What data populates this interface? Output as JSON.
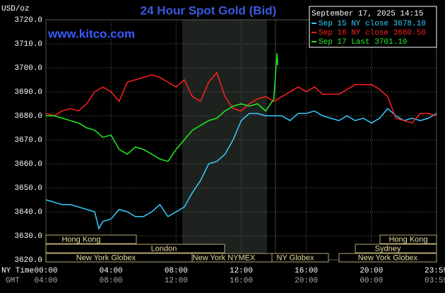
{
  "chart_data": {
    "type": "line",
    "title": "24 Hour Spot Gold (Bid)",
    "watermark": "www.kitco.com",
    "y_unit": "USD/oz",
    "timestamp": "September 17, 2025 14:15",
    "x_row_label": "NY Time",
    "x2_row_label": "GMT",
    "xlim": [
      0,
      24
    ],
    "xticks": [
      {
        "value": 0,
        "label": "00:00"
      },
      {
        "value": 4,
        "label": "04:00"
      },
      {
        "value": 8,
        "label": "08:00"
      },
      {
        "value": 12,
        "label": "12:00"
      },
      {
        "value": 16,
        "label": "16:00"
      },
      {
        "value": 20,
        "label": "20:00"
      },
      {
        "value": 23.98,
        "label": "23:59"
      }
    ],
    "x2ticks": [
      {
        "value": 0,
        "label": "04:00"
      },
      {
        "value": 4,
        "label": "08:00"
      },
      {
        "value": 8,
        "label": "12:00"
      },
      {
        "value": 12,
        "label": "16:00"
      },
      {
        "value": 16,
        "label": "20:00"
      },
      {
        "value": 20,
        "label": "00:00"
      },
      {
        "value": 23.98,
        "label": "03:59"
      }
    ],
    "ylim": [
      3620,
      3720
    ],
    "yticks": [
      {
        "value": 3620,
        "label": "3620.0"
      },
      {
        "value": 3630,
        "label": "3630.0"
      },
      {
        "value": 3640,
        "label": "3640.0"
      },
      {
        "value": 3650,
        "label": "3650.0"
      },
      {
        "value": 3660,
        "label": "3660.0"
      },
      {
        "value": 3670,
        "label": "3670.0"
      },
      {
        "value": 3680,
        "label": "3680.0"
      },
      {
        "value": 3690,
        "label": "3690.0"
      },
      {
        "value": 3700,
        "label": "3700.0"
      },
      {
        "value": 3710,
        "label": "3710.0"
      },
      {
        "value": 3720,
        "label": "3720.0"
      }
    ],
    "grid": true,
    "sessions": [
      "Hong Kong",
      "Hong Kong",
      "London",
      "Sydney",
      "New York Globex",
      "New York NYMEX",
      "NY Globex",
      "New York Globex"
    ],
    "series": [
      {
        "name": "Sep 15 NY close 3678.10",
        "color": "#33ccff",
        "x": [
          0,
          0.5,
          1,
          1.5,
          2,
          2.5,
          3,
          3.25,
          3.5,
          4,
          4.5,
          5,
          5.5,
          6,
          6.5,
          7,
          7.5,
          8,
          8.5,
          9,
          9.5,
          10,
          10.5,
          11,
          11.5,
          12,
          12.5,
          13,
          13.5,
          14,
          14.5,
          15,
          15.5,
          16,
          16.5,
          17,
          17.5,
          18,
          18.5,
          19,
          19.5,
          20,
          20.5,
          21,
          21.5,
          22,
          22.5,
          23,
          23.5,
          24
        ],
        "values": [
          3645,
          3644,
          3643,
          3643,
          3642,
          3641,
          3640,
          3633,
          3636,
          3637,
          3641,
          3640,
          3638,
          3638,
          3640,
          3643,
          3638,
          3640,
          3642,
          3648,
          3653,
          3660,
          3661,
          3664,
          3670,
          3678,
          3681,
          3681,
          3680,
          3680,
          3680,
          3678,
          3681,
          3681,
          3682,
          3680,
          3679,
          3678,
          3680,
          3678,
          3679,
          3677,
          3679,
          3683,
          3680,
          3678,
          3679,
          3678,
          3679,
          3681
        ]
      },
      {
        "name": "Sep 16 NY close 3680.50",
        "color": "#ff2020",
        "x": [
          0,
          0.5,
          1,
          1.5,
          2,
          2.5,
          3,
          3.5,
          4,
          4.5,
          5,
          5.5,
          6,
          6.5,
          7,
          7.5,
          8,
          8.5,
          9,
          9.5,
          10,
          10.5,
          11,
          11.5,
          12,
          12.5,
          13,
          13.5,
          14,
          14.5,
          15,
          15.5,
          16,
          16.5,
          17,
          17.5,
          18,
          18.5,
          19,
          19.5,
          20,
          20.5,
          21,
          21.5,
          22,
          22.5,
          23,
          23.5,
          24
        ],
        "values": [
          3681,
          3680,
          3682,
          3683,
          3682,
          3685,
          3690,
          3692,
          3690,
          3686,
          3694,
          3695,
          3696,
          3697,
          3696,
          3694,
          3692,
          3695,
          3688,
          3686,
          3694,
          3698,
          3688,
          3683,
          3682,
          3685,
          3687,
          3688,
          3686,
          3688,
          3690,
          3692,
          3690,
          3692,
          3689,
          3689,
          3689,
          3691,
          3693,
          3693,
          3693,
          3691,
          3688,
          3679,
          3678,
          3677,
          3681,
          3681,
          3680
        ]
      },
      {
        "name": "Sep 17 Last 3701.10",
        "color": "#22ee22",
        "x": [
          0,
          0.5,
          1,
          1.5,
          2,
          2.5,
          3,
          3.5,
          4,
          4.5,
          5,
          5.5,
          6,
          6.5,
          7,
          7.5,
          8,
          8.5,
          9,
          9.5,
          10,
          10.5,
          11,
          11.5,
          12,
          12.5,
          13,
          13.5,
          14,
          14.2,
          14.25
        ],
        "values": [
          3680,
          3680,
          3679,
          3678,
          3677,
          3675,
          3674,
          3671,
          3672,
          3666,
          3664,
          3667,
          3666,
          3664,
          3662,
          3661,
          3666,
          3670,
          3674,
          3676,
          3678,
          3679,
          3682,
          3684,
          3685,
          3684,
          3685,
          3682,
          3687,
          3706,
          3701.1
        ]
      }
    ]
  }
}
